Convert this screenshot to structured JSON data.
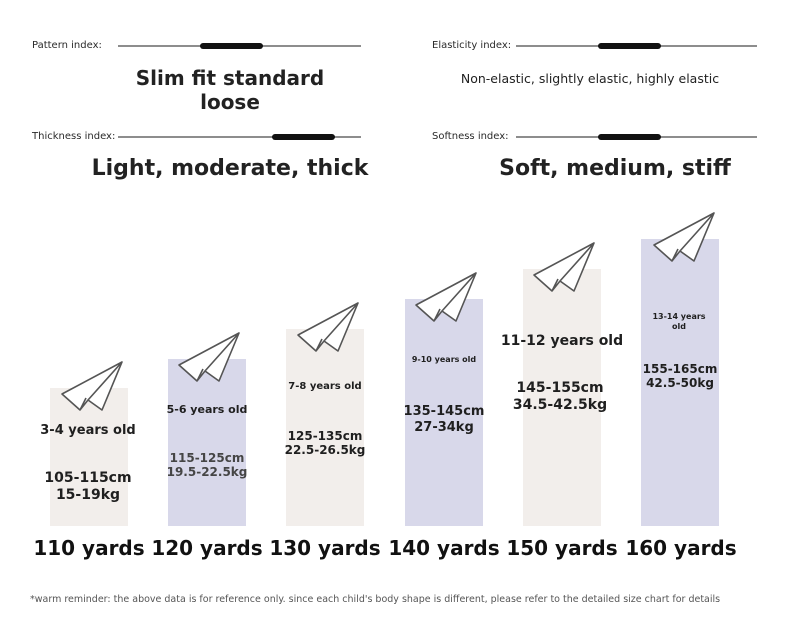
{
  "indices": [
    {
      "label": "Pattern index:",
      "value": "Slim fit standard loose",
      "level": 0.45
    },
    {
      "label": "Elasticity index:",
      "value": "Non-elastic, slightly elastic, highly elastic",
      "level": 0.45
    },
    {
      "label": "Thickness index:",
      "value": "Light, moderate, thick",
      "level": 0.8
    },
    {
      "label": "Softness index:",
      "value": "Soft, medium, stiff",
      "level": 0.45
    }
  ],
  "sizes": [
    {
      "yard": "110 yards",
      "age": "3-4 years old",
      "height": "105-115cm",
      "weight": "15-19kg",
      "color": "#f2eeeb"
    },
    {
      "yard": "120 yards",
      "age": "5-6 years old",
      "height": "115-125cm",
      "weight": "19.5-22.5kg",
      "color": "#d8d8ea"
    },
    {
      "yard": "130 yards",
      "age": "7-8 years old",
      "height": "125-135cm",
      "weight": "22.5-26.5kg",
      "color": "#f2eeeb"
    },
    {
      "yard": "140 yards",
      "age": "9-10 years old",
      "height": "135-145cm",
      "weight": "27-34kg",
      "color": "#d8d8ea"
    },
    {
      "yard": "150 yards",
      "age": "11-12 years old",
      "height": "145-155cm",
      "weight": "34.5-42.5kg",
      "color": "#f2eeeb"
    },
    {
      "yard": "160 yards",
      "age": "13-14 years old",
      "height": "155-165cm",
      "weight": "42.5-50kg",
      "color": "#d8d8ea"
    }
  ],
  "note": "*warm reminder: the above data is for reference only. since each child's body shape is different, please refer to the detailed size chart for details"
}
